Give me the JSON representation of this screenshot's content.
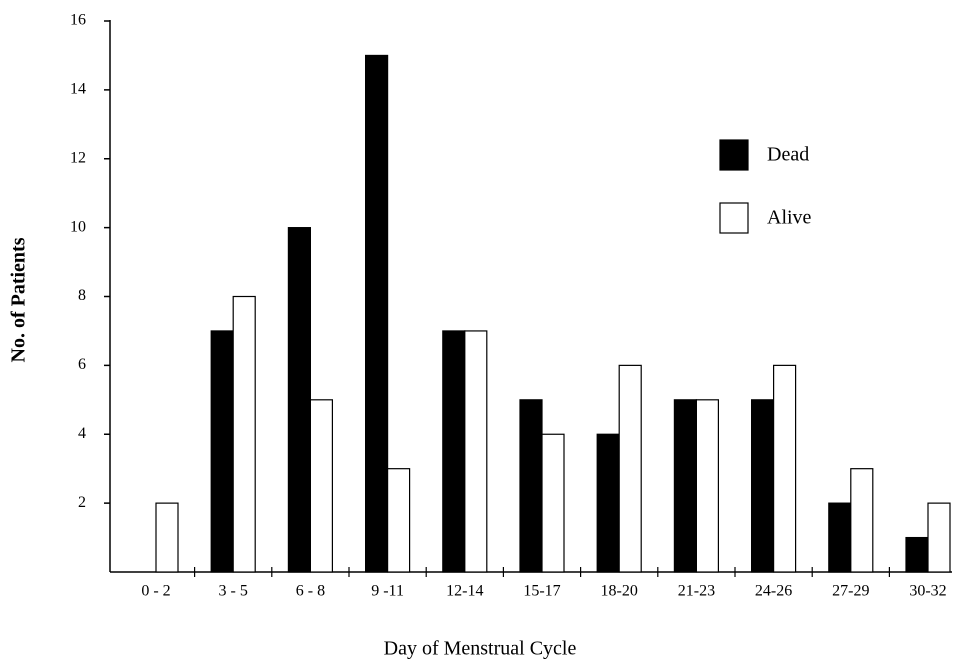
{
  "chart_data": {
    "type": "bar",
    "x_label": "Day of Menstrual Cycle",
    "y_label": "No. of Patients",
    "categories": [
      "0 - 2",
      "3 - 5",
      "6 - 8",
      "9 -11",
      "12-14",
      "15-17",
      "18-20",
      "21-23",
      "24-26",
      "27-29",
      "30-32"
    ],
    "series": [
      {
        "name": "Dead",
        "color": "#000000",
        "values": [
          0,
          7,
          10,
          15,
          7,
          5,
          4,
          5,
          5,
          2,
          1
        ]
      },
      {
        "name": "Alive",
        "color": "#ffffff",
        "values": [
          2,
          8,
          5,
          3,
          7,
          4,
          6,
          5,
          6,
          3,
          2
        ]
      }
    ],
    "ylim": [
      0,
      16
    ],
    "yticks": [
      2,
      4,
      6,
      8,
      10,
      12,
      14,
      16
    ]
  }
}
